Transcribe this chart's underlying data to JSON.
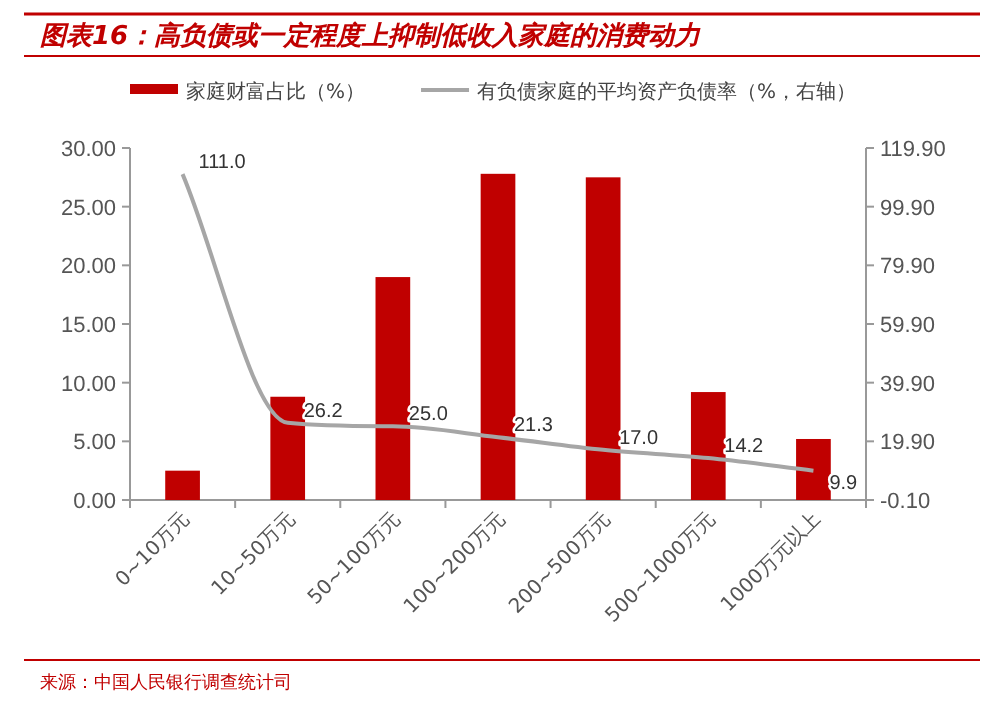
{
  "chart_data": {
    "type": "bar",
    "title": "图表16：高负债或一定程度上抑制低收入家庭的消费动力",
    "categories": [
      "0~10万元",
      "10~50万元",
      "50~100万元",
      "100~200万元",
      "200~500万元",
      "500~1000万元",
      "1000万元以上"
    ],
    "series": [
      {
        "name": "家庭财富占比（%）",
        "color": "#c00000",
        "values": [
          2.5,
          8.8,
          19.0,
          27.8,
          27.5,
          9.2,
          5.2
        ]
      },
      {
        "name": "有负债家庭的平均资产负债率（%，右轴）",
        "color": "#a6a6a6",
        "type": "line",
        "axis": "y2",
        "values": [
          111.0,
          26.2,
          25.0,
          21.3,
          17.0,
          14.2,
          9.9
        ],
        "value_labels": [
          "111.0",
          "26.2",
          "25.0",
          "21.3",
          "17.0",
          "14.2",
          "9.9"
        ]
      }
    ],
    "ylim": [
      0,
      30
    ],
    "yticks": [
      {
        "value": 0,
        "label": "0.00"
      },
      {
        "value": 5,
        "label": "5.00"
      },
      {
        "value": 10,
        "label": "10.00"
      },
      {
        "value": 15,
        "label": "15.00"
      },
      {
        "value": 20,
        "label": "20.00"
      },
      {
        "value": 25,
        "label": "25.00"
      },
      {
        "value": 30,
        "label": "30.00"
      }
    ],
    "y2lim": [
      -0.1,
      119.9
    ],
    "y2ticks": [
      {
        "value": -0.1,
        "label": "-0.10"
      },
      {
        "value": 19.9,
        "label": "19.90"
      },
      {
        "value": 39.9,
        "label": "39.90"
      },
      {
        "value": 59.9,
        "label": "59.90"
      },
      {
        "value": 79.9,
        "label": "79.90"
      },
      {
        "value": 99.9,
        "label": "99.90"
      },
      {
        "value": 119.9,
        "label": "119.90"
      }
    ],
    "legend": "top",
    "grid": false,
    "marker": "none",
    "line_style": "solid",
    "annotations": [
      "来源：中国人民银行调查统计司"
    ]
  }
}
